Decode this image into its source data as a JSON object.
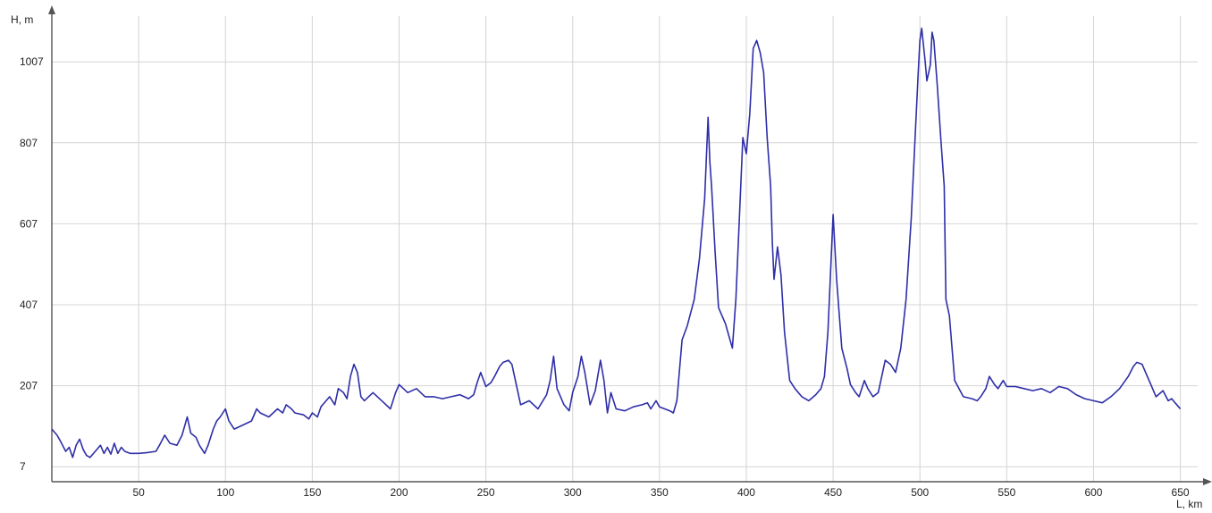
{
  "chart_data": {
    "type": "line",
    "title": "",
    "xlabel": "L, km",
    "ylabel": "H, m",
    "xlim": [
      0,
      660
    ],
    "ylim": [
      -30,
      1120
    ],
    "grid": true,
    "x_ticks": [
      50,
      100,
      150,
      200,
      250,
      300,
      350,
      400,
      450,
      500,
      550,
      600,
      650
    ],
    "y_ticks": [
      7,
      207,
      407,
      607,
      807,
      1007
    ],
    "series": [
      {
        "color": "#2e2ea8",
        "x": [
          0,
          3,
          5,
          8,
          10,
          12,
          14,
          16,
          18,
          20,
          22,
          25,
          28,
          30,
          32,
          34,
          36,
          38,
          40,
          42,
          45,
          50,
          55,
          60,
          62,
          65,
          68,
          72,
          75,
          78,
          80,
          83,
          85,
          88,
          90,
          93,
          95,
          97,
          100,
          102,
          105,
          110,
          115,
          118,
          120,
          125,
          130,
          133,
          135,
          138,
          140,
          145,
          148,
          150,
          153,
          155,
          158,
          160,
          163,
          165,
          168,
          170,
          172,
          174,
          176,
          178,
          180,
          185,
          190,
          195,
          198,
          200,
          205,
          210,
          215,
          220,
          225,
          230,
          235,
          240,
          243,
          245,
          247,
          250,
          253,
          255,
          258,
          260,
          263,
          265,
          270,
          275,
          280,
          285,
          287,
          289,
          291,
          295,
          298,
          300,
          303,
          305,
          307,
          310,
          313,
          316,
          318,
          320,
          322,
          325,
          330,
          335,
          340,
          343,
          345,
          348,
          350,
          353,
          356,
          358,
          360,
          363,
          366,
          370,
          373,
          376,
          378,
          379,
          380,
          382,
          384,
          386,
          388,
          390,
          392,
          394,
          396,
          398,
          400,
          402,
          404,
          405,
          406,
          408,
          410,
          412,
          414,
          415,
          416,
          418,
          420,
          422,
          425,
          428,
          432,
          436,
          440,
          443,
          445,
          447,
          449,
          450,
          452,
          455,
          458,
          460,
          463,
          465,
          468,
          470,
          473,
          476,
          478,
          480,
          483,
          486,
          489,
          492,
          495,
          497,
          499,
          500,
          501,
          503,
          504,
          506,
          507,
          508,
          510,
          512,
          514,
          515,
          517,
          520,
          525,
          530,
          533,
          535,
          538,
          540,
          543,
          545,
          548,
          550,
          555,
          560,
          565,
          570,
          575,
          580,
          585,
          590,
          595,
          600,
          605,
          610,
          615,
          620,
          623,
          625,
          628,
          630,
          633,
          636,
          640,
          643,
          645,
          647,
          649,
          650
        ],
        "y": [
          100,
          85,
          70,
          45,
          55,
          30,
          60,
          75,
          50,
          35,
          30,
          45,
          60,
          40,
          55,
          38,
          65,
          40,
          55,
          45,
          40,
          40,
          42,
          45,
          60,
          85,
          65,
          60,
          85,
          130,
          90,
          80,
          60,
          40,
          60,
          100,
          120,
          130,
          150,
          120,
          100,
          110,
          120,
          150,
          140,
          130,
          150,
          140,
          160,
          150,
          140,
          135,
          125,
          140,
          130,
          155,
          170,
          180,
          160,
          200,
          190,
          175,
          230,
          260,
          240,
          180,
          170,
          190,
          170,
          150,
          190,
          210,
          190,
          200,
          180,
          180,
          175,
          180,
          185,
          175,
          185,
          215,
          240,
          205,
          215,
          230,
          255,
          265,
          270,
          260,
          160,
          170,
          150,
          185,
          220,
          280,
          200,
          160,
          145,
          190,
          230,
          280,
          240,
          160,
          195,
          270,
          220,
          140,
          190,
          150,
          145,
          155,
          160,
          165,
          150,
          170,
          155,
          150,
          145,
          140,
          170,
          320,
          355,
          420,
          520,
          670,
          870,
          760,
          700,
          540,
          400,
          380,
          360,
          330,
          300,
          420,
          620,
          820,
          780,
          880,
          1040,
          1050,
          1060,
          1030,
          980,
          820,
          700,
          560,
          470,
          550,
          480,
          340,
          220,
          200,
          180,
          170,
          185,
          200,
          230,
          340,
          530,
          630,
          470,
          300,
          250,
          210,
          190,
          180,
          220,
          200,
          180,
          190,
          230,
          270,
          260,
          240,
          300,
          420,
          620,
          800,
          980,
          1060,
          1090,
          1010,
          960,
          1000,
          1080,
          1060,
          950,
          820,
          700,
          420,
          380,
          220,
          180,
          175,
          170,
          180,
          200,
          230,
          210,
          200,
          220,
          205,
          205,
          200,
          195,
          200,
          190,
          205,
          200,
          185,
          175,
          170,
          165,
          180,
          200,
          230,
          255,
          265,
          260,
          240,
          210,
          180,
          195,
          170,
          175,
          165,
          155,
          150
        ]
      }
    ]
  }
}
